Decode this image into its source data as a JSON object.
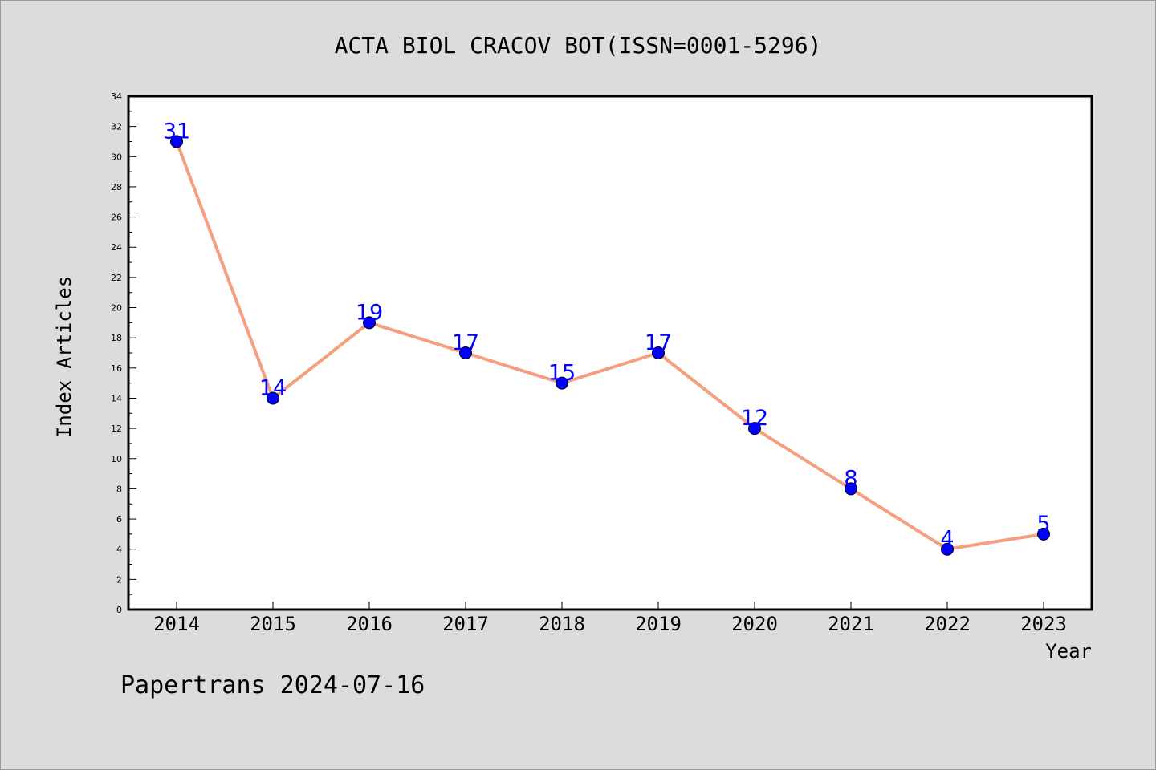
{
  "chart_data": {
    "type": "line",
    "title": "ACTA BIOL CRACOV BOT(ISSN=0001-5296)",
    "xlabel": "Year",
    "ylabel": "Index Articles",
    "categories": [
      "2014",
      "2015",
      "2016",
      "2017",
      "2018",
      "2019",
      "2020",
      "2021",
      "2022",
      "2023"
    ],
    "series": [
      {
        "values": [
          31,
          14,
          19,
          17,
          15,
          17,
          12,
          8,
          4,
          5
        ]
      }
    ],
    "ylim": [
      0,
      34
    ],
    "y_major_step": 2,
    "grid": false,
    "data_labels": true,
    "colors": {
      "line": "#f4a07e",
      "marker": "#0000ff",
      "data_label": "#0000ff",
      "background": "#dcdcdc",
      "plot_area": "#ffffff"
    }
  },
  "footer": {
    "watermark": "Papertrans 2024-07-16"
  }
}
